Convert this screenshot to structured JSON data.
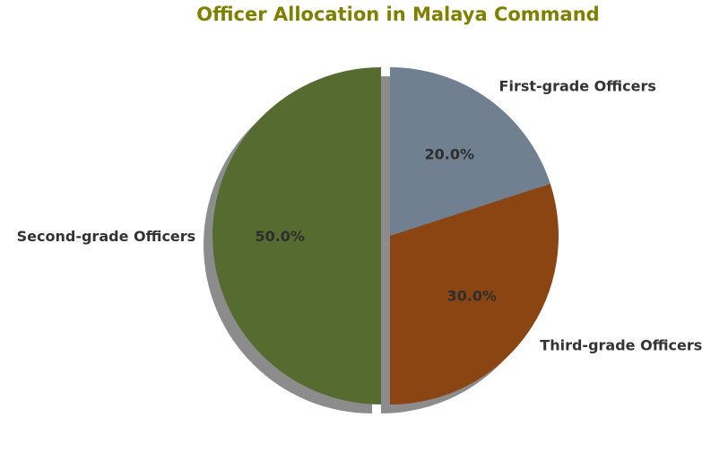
{
  "chart_data": {
    "type": "pie",
    "title": "Officer Allocation in Malaya Command",
    "categories": [
      "First-grade Officers",
      "Third-grade Officers",
      "Second-grade Officers"
    ],
    "values": [
      20.0,
      30.0,
      50.0
    ],
    "value_labels": [
      "20.0%",
      "30.0%",
      "50.0%"
    ],
    "colors": [
      "#708090",
      "#8b4513",
      "#556b2f"
    ],
    "title_color": "#808000",
    "exploded": [
      "Second-grade Officers"
    ],
    "shadow": true,
    "start": "top, clockwise"
  }
}
